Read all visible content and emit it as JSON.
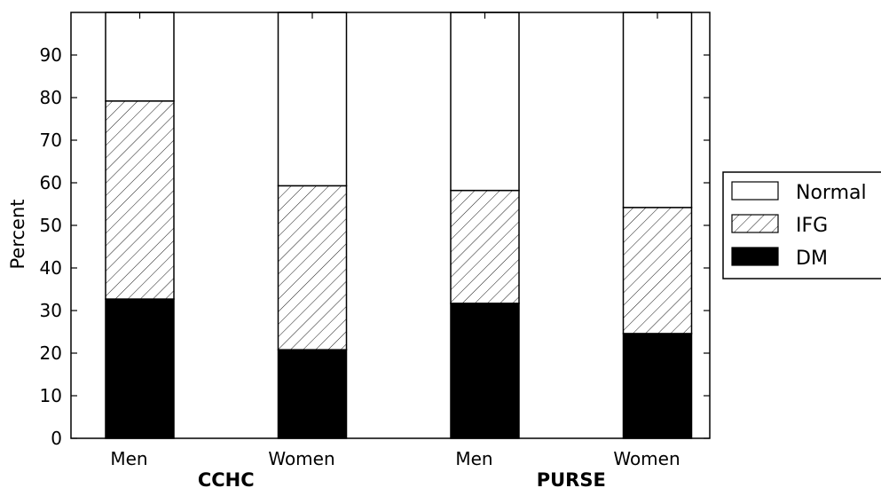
{
  "chart_data": {
    "type": "bar",
    "stacked": true,
    "categories": [
      "Men",
      "Women",
      "Men",
      "Women"
    ],
    "groups": [
      {
        "label": "CCHC",
        "categories": [
          "Men",
          "Women"
        ]
      },
      {
        "label": "PURSE",
        "categories": [
          "Men",
          "Women"
        ]
      }
    ],
    "series": [
      {
        "name": "DM",
        "values": [
          32.7,
          20.8,
          31.7,
          24.6
        ],
        "fill": "#000000"
      },
      {
        "name": "IFG",
        "values": [
          46.5,
          38.5,
          26.5,
          29.6
        ],
        "fill": "hatch"
      },
      {
        "name": "Normal",
        "values": [
          20.8,
          40.7,
          41.8,
          45.8
        ],
        "fill": "#ffffff"
      }
    ],
    "legend_order": [
      "Normal",
      "IFG",
      "DM"
    ],
    "legend_position": "right",
    "ylabel": "Percent",
    "xlabel": "",
    "ylim": [
      0,
      100
    ],
    "yticks": [
      0,
      10,
      20,
      30,
      40,
      50,
      60,
      70,
      80,
      90
    ],
    "grid": false
  }
}
